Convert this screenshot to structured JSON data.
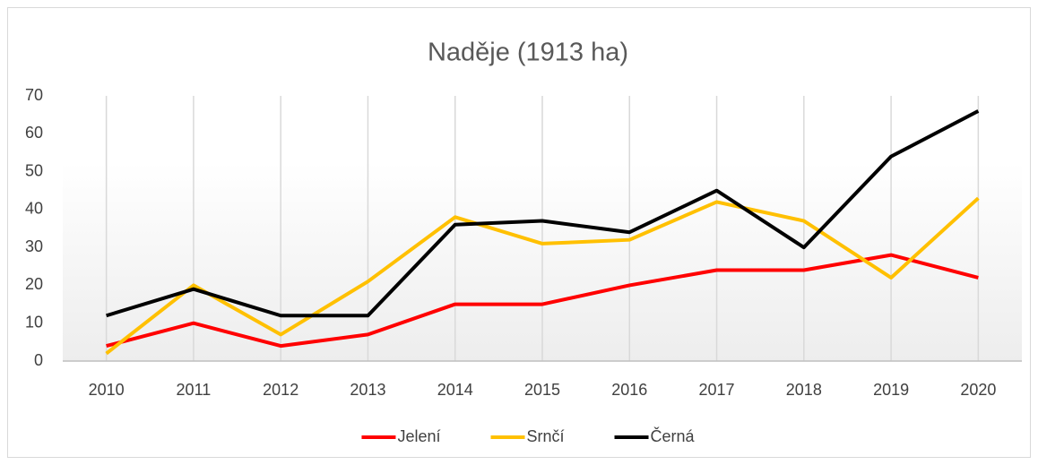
{
  "chart_data": {
    "type": "line",
    "title": "Naděje (1913 ha)",
    "categories": [
      "2010",
      "2011",
      "2012",
      "2013",
      "2014",
      "2015",
      "2016",
      "2017",
      "2018",
      "2019",
      "2020"
    ],
    "series": [
      {
        "name": "Jelení",
        "color": "#ff0000",
        "values": [
          4,
          10,
          4,
          7,
          15,
          15,
          20,
          24,
          24,
          28,
          22
        ]
      },
      {
        "name": "Srnčí",
        "color": "#ffc000",
        "values": [
          2,
          20,
          7,
          21,
          38,
          31,
          32,
          42,
          37,
          22,
          43
        ]
      },
      {
        "name": "Černá",
        "color": "#000000",
        "values": [
          12,
          19,
          12,
          12,
          36,
          37,
          34,
          45,
          30,
          54,
          66
        ]
      }
    ],
    "ylim": [
      0,
      70
    ],
    "yticks": [
      0,
      10,
      20,
      30,
      40,
      50,
      60,
      70
    ],
    "grid": false,
    "xgrid": true,
    "legend": "bottom"
  }
}
